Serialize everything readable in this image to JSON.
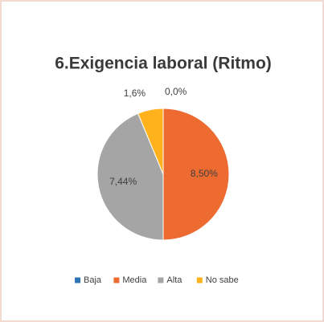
{
  "chart_data": {
    "type": "pie",
    "title": "6.Exigencia laboral (Ritmo)",
    "categories": [
      "Baja",
      "Media",
      "Alta",
      "No sabe"
    ],
    "values": [
      0,
      8,
      7,
      1
    ],
    "value_labels": [
      "0,0%",
      "8,50%",
      "7,44%",
      "1,6%"
    ],
    "colors": [
      "#2e75b6",
      "#ed6b31",
      "#a5a5a5",
      "#ffb21c"
    ],
    "legend": "bottom"
  }
}
